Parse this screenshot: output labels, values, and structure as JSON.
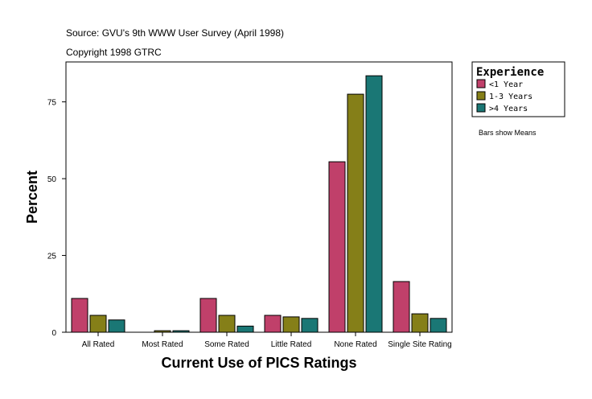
{
  "source_line": "Source: GVU's 9th WWW User Survey (April 1998)",
  "copyright_line": "Copyright 1998 GTRC",
  "note": "Bars show Means",
  "chart_data": {
    "type": "bar",
    "title": "",
    "xlabel": "Current Use of PICS Ratings",
    "ylabel": "Percent",
    "ylim": [
      0,
      88
    ],
    "yticks": [
      0,
      25,
      50,
      75
    ],
    "categories": [
      "All Rated",
      "Most Rated",
      "Some Rated",
      "Little Rated",
      "None Rated",
      "Single Site Rating"
    ],
    "legend_title": "Experience",
    "legend_position": "top-right, outside plot",
    "series": [
      {
        "name": "<1 Year",
        "color": "#c0406a",
        "values": [
          11,
          0,
          11,
          5.5,
          55.5,
          16.5
        ]
      },
      {
        "name": "1-3 Years",
        "color": "#857f18",
        "values": [
          5.5,
          0.5,
          5.5,
          5,
          77.5,
          6
        ]
      },
      {
        "name": ">4 Years",
        "color": "#1a7775",
        "values": [
          4,
          0.5,
          2,
          4.5,
          83.5,
          4.5
        ]
      }
    ]
  }
}
